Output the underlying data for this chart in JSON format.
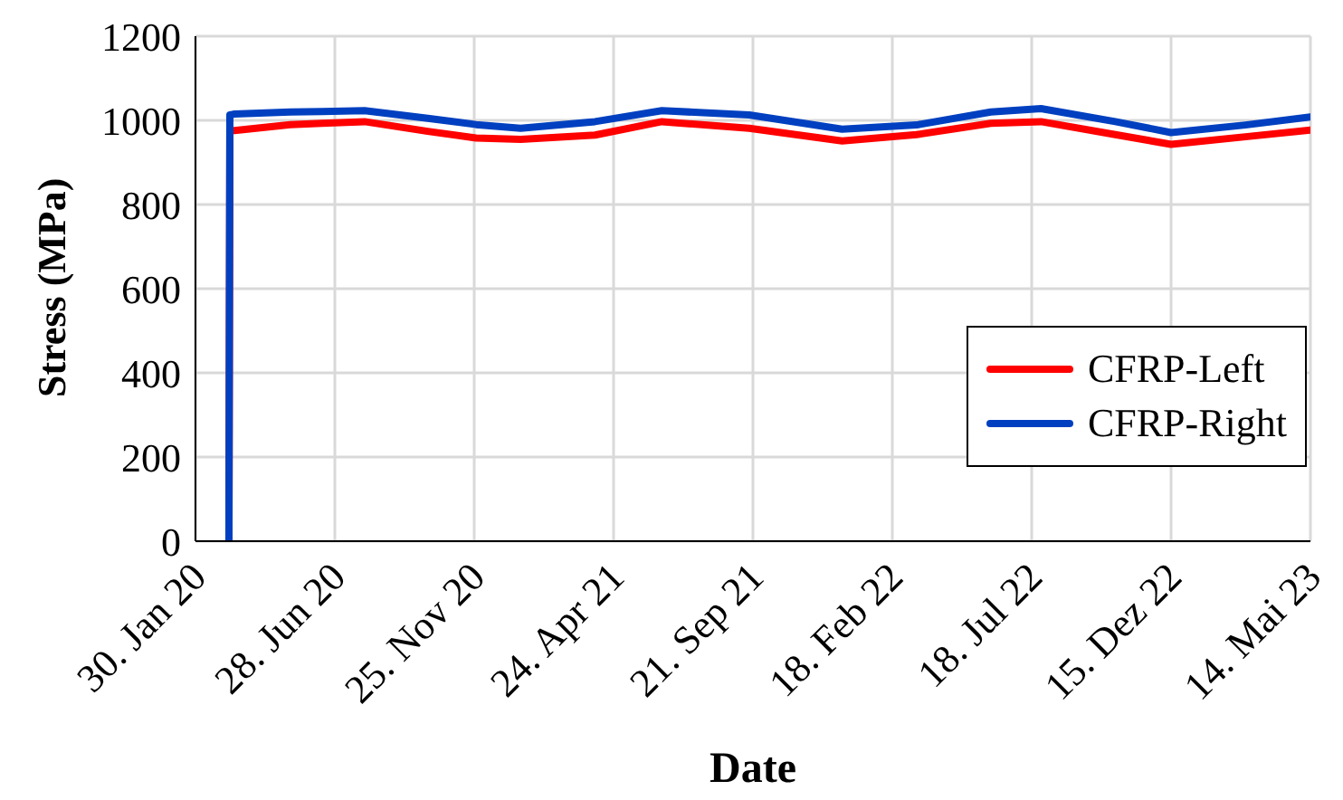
{
  "chart_data": {
    "type": "line",
    "xlabel": "Date",
    "ylabel": "Stress (MPa)",
    "x": [
      "2020-03-06",
      "2020-03-07",
      "2020-03-12",
      "2020-05-11",
      "2020-06-14",
      "2020-07-30",
      "2020-10-06",
      "2020-11-27",
      "2021-01-14",
      "2021-04-04",
      "2021-06-15",
      "2021-09-17",
      "2021-12-26",
      "2022-03-16",
      "2022-06-04",
      "2022-07-28",
      "2022-10-16",
      "2022-12-15",
      "2023-03-05",
      "2023-05-14"
    ],
    "series": [
      {
        "name": "CFRP-Left",
        "color": "#ff0000",
        "values": [
          0,
          974,
          976,
          990,
          993,
          997,
          974,
          958,
          955,
          965,
          997,
          981,
          951,
          966,
          993,
          997,
          966,
          943,
          961,
          977
        ]
      },
      {
        "name": "CFRP-Right",
        "color": "#0040c0",
        "values": [
          0,
          1013,
          1015,
          1020,
          1021,
          1023,
          1005,
          990,
          981,
          997,
          1023,
          1013,
          979,
          989,
          1020,
          1028,
          997,
          971,
          989,
          1008
        ]
      }
    ],
    "xlim": [
      "2020-01-30",
      "2023-05-14"
    ],
    "xticks": [
      {
        "value": "2020-01-30",
        "label": "30. Jan 20"
      },
      {
        "value": "2020-06-28",
        "label": "28. Jun 20"
      },
      {
        "value": "2020-11-25",
        "label": "25. Nov 20"
      },
      {
        "value": "2021-04-24",
        "label": "24. Apr 21"
      },
      {
        "value": "2021-09-21",
        "label": "21. Sep 21"
      },
      {
        "value": "2022-02-18",
        "label": "18. Feb 22"
      },
      {
        "value": "2022-07-18",
        "label": "18. Jul 22"
      },
      {
        "value": "2022-12-15",
        "label": "15. Dez 22"
      },
      {
        "value": "2023-05-14",
        "label": "14. Mai 23"
      }
    ],
    "ylim": [
      0,
      1200
    ],
    "yticks": [
      0,
      200,
      400,
      600,
      800,
      1000,
      1200
    ],
    "grid": true,
    "legend": "bottom right",
    "line_style": "solid"
  }
}
